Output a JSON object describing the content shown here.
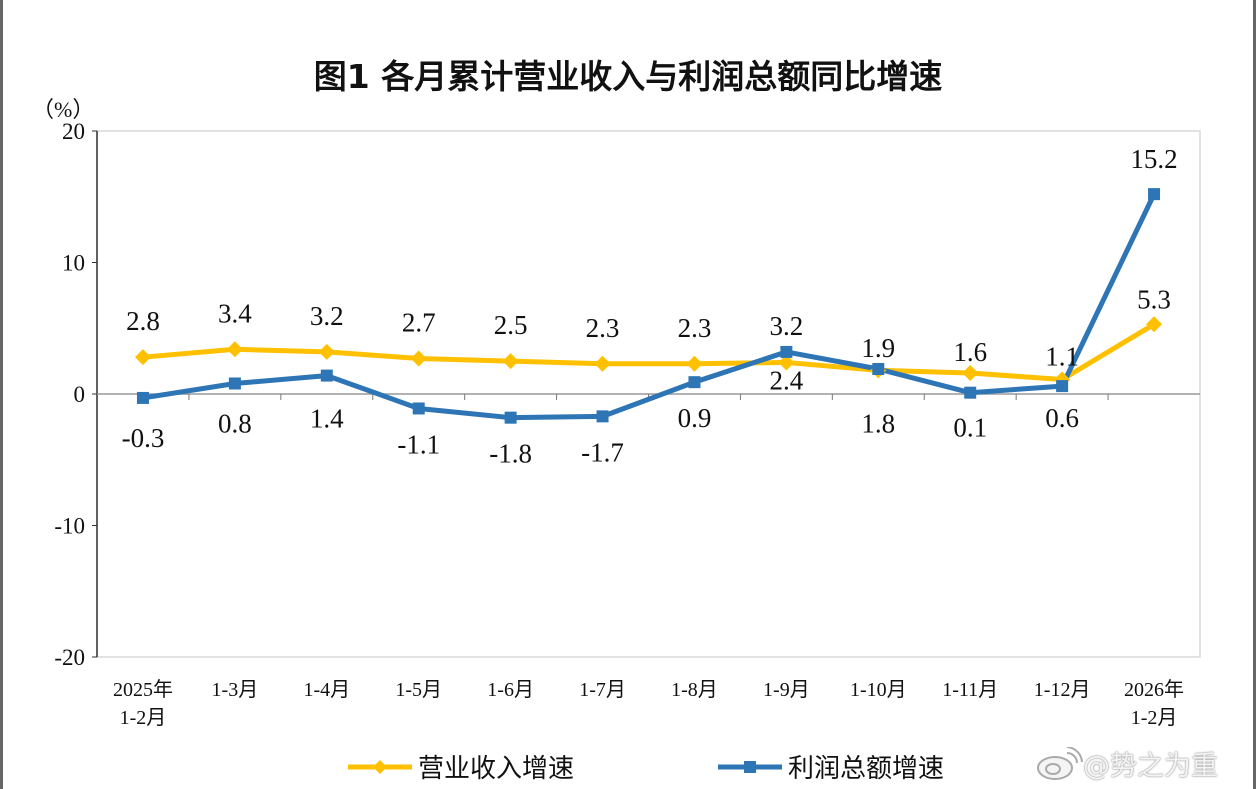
{
  "chart_data": {
    "type": "line",
    "title": "图1  各月累计营业收入与利润总额同比增速",
    "ylabel": "（%）",
    "ylim": [
      -20,
      20
    ],
    "yticks": [
      20,
      10,
      0,
      -10,
      -20
    ],
    "grid": false,
    "legend_placement": "bottom",
    "categories": [
      "2025年\n1-2月",
      "1-3月",
      "1-4月",
      "1-5月",
      "1-6月",
      "1-7月",
      "1-8月",
      "1-9月",
      "1-10月",
      "1-11月",
      "1-12月",
      "2026年\n1-2月"
    ],
    "series": [
      {
        "name": "营业收入增速",
        "color": "#FFC000",
        "marker": "diamond",
        "values": [
          2.8,
          3.4,
          3.2,
          2.7,
          2.5,
          2.3,
          2.3,
          2.4,
          1.8,
          1.6,
          1.1,
          5.3
        ]
      },
      {
        "name": "利润总额增速",
        "color": "#2E75B6",
        "marker": "square",
        "values": [
          -0.3,
          0.8,
          1.4,
          -1.1,
          -1.8,
          -1.7,
          0.9,
          3.2,
          1.9,
          0.1,
          0.6,
          15.2
        ]
      }
    ]
  },
  "watermark": {
    "text": "@势之为重",
    "icon": "weibo-logo-icon"
  }
}
